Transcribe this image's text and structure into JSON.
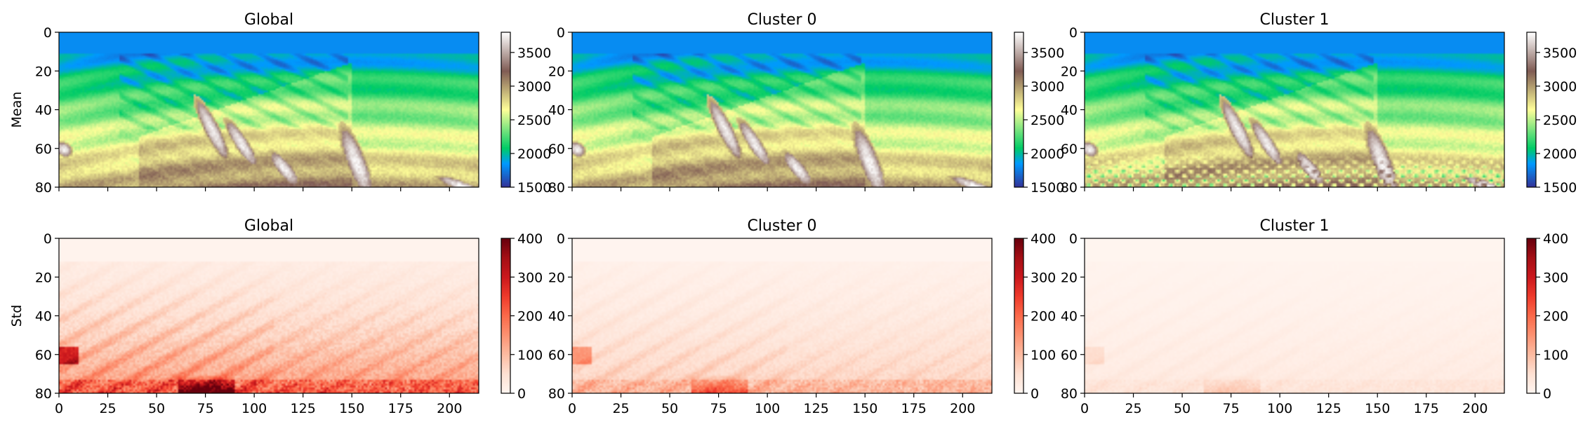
{
  "chart_data": [
    {
      "type": "heatmap",
      "row_label": "Mean",
      "title": "Global",
      "xlim": [
        0,
        215
      ],
      "ylim": [
        80,
        0
      ],
      "xticks": [],
      "yticks": [
        0,
        20,
        40,
        60,
        80
      ],
      "colormap": "terrain",
      "clim": [
        1500,
        3800
      ],
      "colorbar_ticks": [
        1500,
        2000,
        2500,
        3000,
        3500
      ],
      "variant": "mean",
      "edge_artifacts": 0.1
    },
    {
      "type": "heatmap",
      "row_label": "",
      "title": "Cluster 0",
      "xlim": [
        0,
        215
      ],
      "ylim": [
        80,
        0
      ],
      "xticks": [],
      "yticks": [
        0,
        20,
        40,
        60,
        80
      ],
      "colormap": "terrain",
      "clim": [
        1500,
        3800
      ],
      "colorbar_ticks": [
        1500,
        2000,
        2500,
        3000,
        3500
      ],
      "variant": "mean",
      "edge_artifacts": 0.1
    },
    {
      "type": "heatmap",
      "row_label": "",
      "title": "Cluster 1",
      "xlim": [
        0,
        215
      ],
      "ylim": [
        80,
        0
      ],
      "xticks": [],
      "yticks": [
        0,
        20,
        40,
        60,
        80
      ],
      "colormap": "terrain",
      "clim": [
        1500,
        3800
      ],
      "colorbar_ticks": [
        1500,
        2000,
        2500,
        3000,
        3500
      ],
      "variant": "mean",
      "edge_artifacts": 1.0
    },
    {
      "type": "heatmap",
      "row_label": "Std",
      "title": "Global",
      "xlim": [
        0,
        215
      ],
      "ylim": [
        80,
        0
      ],
      "xticks": [
        0,
        25,
        50,
        75,
        100,
        125,
        150,
        175,
        200
      ],
      "yticks": [
        0,
        20,
        40,
        60,
        80
      ],
      "colormap": "reds",
      "clim": [
        0,
        400
      ],
      "colorbar_ticks": [
        0,
        100,
        200,
        300,
        400
      ],
      "variant": "std",
      "intensity": 1.0
    },
    {
      "type": "heatmap",
      "row_label": "",
      "title": "Cluster 0",
      "xlim": [
        0,
        215
      ],
      "ylim": [
        80,
        0
      ],
      "xticks": [
        0,
        25,
        50,
        75,
        100,
        125,
        150,
        175,
        200
      ],
      "yticks": [
        0,
        20,
        40,
        60,
        80
      ],
      "colormap": "reds",
      "clim": [
        0,
        400
      ],
      "colorbar_ticks": [
        0,
        100,
        200,
        300,
        400
      ],
      "variant": "std",
      "intensity": 0.5
    },
    {
      "type": "heatmap",
      "row_label": "",
      "title": "Cluster 1",
      "xlim": [
        0,
        215
      ],
      "ylim": [
        80,
        0
      ],
      "xticks": [
        0,
        25,
        50,
        75,
        100,
        125,
        150,
        175,
        200
      ],
      "yticks": [
        0,
        20,
        40,
        60,
        80
      ],
      "colormap": "reds",
      "clim": [
        0,
        400
      ],
      "colorbar_ticks": [
        0,
        100,
        200,
        300,
        400
      ],
      "variant": "std",
      "intensity": 0.18
    }
  ]
}
